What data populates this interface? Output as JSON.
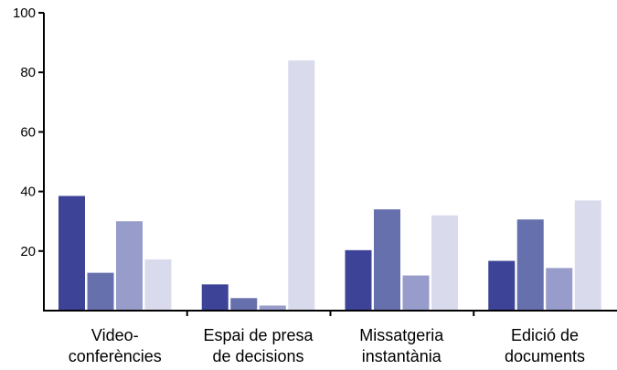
{
  "chart_data": {
    "type": "bar",
    "categories": [
      [
        "Video-",
        "conferències"
      ],
      [
        "Espai de presa",
        "de decisions"
      ],
      [
        "Missatgeria",
        "instantània"
      ],
      [
        "Edició de",
        "documents"
      ]
    ],
    "series": [
      {
        "values": [
          38.5,
          8.8,
          20.3,
          16.7
        ]
      },
      {
        "values": [
          12.7,
          4.2,
          34.0,
          30.6
        ]
      },
      {
        "values": [
          30.0,
          1.7,
          11.8,
          14.3
        ]
      },
      {
        "values": [
          17.2,
          84.0,
          32.0,
          37.0
        ]
      }
    ],
    "colors": [
      "#3d4497",
      "#6570ad",
      "#979cca",
      "#d9dbed"
    ],
    "ylim": [
      0,
      100
    ],
    "yticks": [
      20,
      40,
      60,
      80,
      100
    ],
    "grid": false,
    "legend": "none",
    "xlabel": "",
    "ylabel": ""
  }
}
